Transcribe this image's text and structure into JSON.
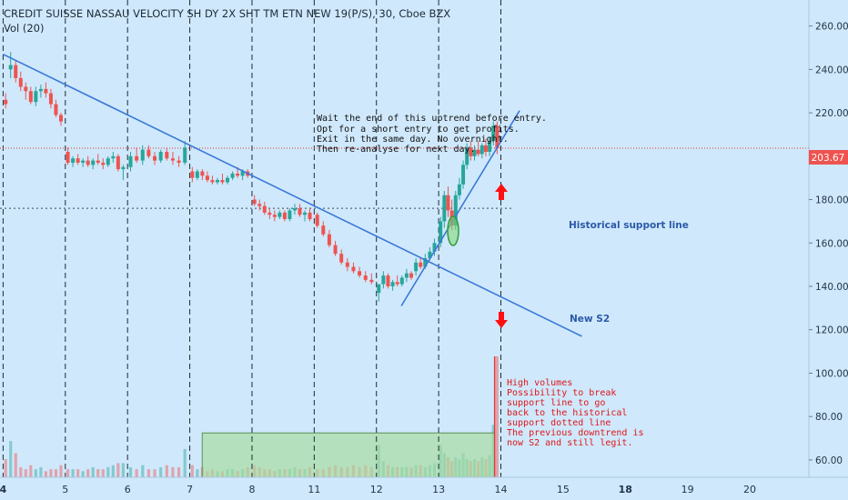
{
  "header": {
    "title": "CREDIT SUISSE NASSAU VELOCITY SH DY 2X SHT TM ETN NEW 19(P/S), 30, Cboe BZX",
    "indicator": "Vol (20)"
  },
  "colors": {
    "background": "#cfe8fb",
    "up": "#26a69a",
    "down": "#ef5350",
    "trendline": "#3a78d8",
    "arrow": "#ff1010",
    "price_line": "#e53935",
    "volume_zone": "#a8dc9b"
  },
  "annotations": {
    "strategy_note": [
      "Wait the end of this uptrend before entry.",
      "Opt for a short entry to get profits.",
      "Exit in the same day. No overnight.",
      "Then re-analyse for next day."
    ],
    "support_label": "Historical support line",
    "new_s2_label": "New S2",
    "volume_note": [
      "High volumes",
      "Possibility to break",
      "support line to go",
      "back to the historical",
      "support dotted line",
      "The previous downtrend is",
      "now S2 and still legit."
    ]
  },
  "price_tag": "203.67",
  "chart_data": {
    "type": "candlestick",
    "title": "CREDIT SUISSE NASSAU VELOCITY SH DY 2X SHT TM ETN NEW 19(P/S), 30, Cboe BZX",
    "y_axis": {
      "ticks": [
        60,
        80,
        100,
        120,
        140,
        160,
        180,
        200,
        220,
        240,
        260
      ],
      "tick_labels": [
        "60.00",
        "80.00",
        "100.00",
        "120.00",
        "140.00",
        "160.00",
        "180.00",
        "200.00",
        "220.00",
        "240.00",
        "260.00"
      ],
      "range": [
        52,
        272
      ]
    },
    "x_axis": {
      "tick_labels": [
        "4",
        "5",
        "6",
        "7",
        "8",
        "11",
        "12",
        "13",
        "14",
        "15",
        "18",
        "19",
        "20"
      ],
      "bold_ticks": [
        "4",
        "18"
      ],
      "session_index": [
        0,
        1,
        2,
        3,
        4,
        5,
        6,
        7,
        8,
        9,
        10,
        11,
        12
      ],
      "range": [
        -0.05,
        12.95
      ]
    },
    "current_price": 203.67,
    "historical_support": 176,
    "trendline_downtrend": {
      "points": [
        [
          0,
          247
        ],
        [
          9.3,
          117
        ]
      ]
    },
    "trendline_uptrend": {
      "points": [
        [
          6.4,
          131
        ],
        [
          8.3,
          221
        ]
      ]
    },
    "candles": [
      {
        "o": 226,
        "h": 229,
        "l": 222,
        "c": 224
      },
      {
        "o": 240,
        "h": 248,
        "l": 236,
        "c": 242
      },
      {
        "o": 242,
        "h": 244,
        "l": 234,
        "c": 236
      },
      {
        "o": 236,
        "h": 239,
        "l": 230,
        "c": 232
      },
      {
        "o": 232,
        "h": 234,
        "l": 226,
        "c": 230
      },
      {
        "o": 230,
        "h": 232,
        "l": 224,
        "c": 225
      },
      {
        "o": 225,
        "h": 232,
        "l": 223,
        "c": 230
      },
      {
        "o": 230,
        "h": 233,
        "l": 227,
        "c": 231
      },
      {
        "o": 231,
        "h": 234,
        "l": 227,
        "c": 229
      },
      {
        "o": 229,
        "h": 231,
        "l": 222,
        "c": 224
      },
      {
        "o": 224,
        "h": 226,
        "l": 218,
        "c": 219
      },
      {
        "o": 219,
        "h": 220,
        "l": 214,
        "c": 216
      },
      {
        "o": 202,
        "h": 204,
        "l": 196,
        "c": 197
      },
      {
        "o": 197,
        "h": 200,
        "l": 195,
        "c": 199
      },
      {
        "o": 199,
        "h": 201,
        "l": 196,
        "c": 197
      },
      {
        "o": 197,
        "h": 199,
        "l": 195,
        "c": 198
      },
      {
        "o": 198,
        "h": 200,
        "l": 195,
        "c": 196
      },
      {
        "o": 196,
        "h": 199,
        "l": 194,
        "c": 198
      },
      {
        "o": 198,
        "h": 201,
        "l": 196,
        "c": 197
      },
      {
        "o": 197,
        "h": 199,
        "l": 194,
        "c": 196
      },
      {
        "o": 196,
        "h": 200,
        "l": 195,
        "c": 199
      },
      {
        "o": 199,
        "h": 202,
        "l": 197,
        "c": 200
      },
      {
        "o": 200,
        "h": 201,
        "l": 193,
        "c": 194
      },
      {
        "o": 194,
        "h": 196,
        "l": 189,
        "c": 195
      },
      {
        "o": 195,
        "h": 202,
        "l": 193,
        "c": 200
      },
      {
        "o": 200,
        "h": 204,
        "l": 197,
        "c": 198
      },
      {
        "o": 198,
        "h": 205,
        "l": 196,
        "c": 203
      },
      {
        "o": 203,
        "h": 205,
        "l": 199,
        "c": 200
      },
      {
        "o": 200,
        "h": 202,
        "l": 196,
        "c": 198
      },
      {
        "o": 198,
        "h": 203,
        "l": 197,
        "c": 202
      },
      {
        "o": 202,
        "h": 204,
        "l": 198,
        "c": 199
      },
      {
        "o": 199,
        "h": 202,
        "l": 196,
        "c": 198
      },
      {
        "o": 198,
        "h": 200,
        "l": 195,
        "c": 197
      },
      {
        "o": 197,
        "h": 207,
        "l": 196,
        "c": 204
      },
      {
        "o": 193,
        "h": 195,
        "l": 188,
        "c": 190
      },
      {
        "o": 190,
        "h": 194,
        "l": 189,
        "c": 193
      },
      {
        "o": 193,
        "h": 194,
        "l": 189,
        "c": 191
      },
      {
        "o": 191,
        "h": 193,
        "l": 188,
        "c": 189
      },
      {
        "o": 189,
        "h": 191,
        "l": 187,
        "c": 188
      },
      {
        "o": 188,
        "h": 190,
        "l": 187,
        "c": 189
      },
      {
        "o": 189,
        "h": 192,
        "l": 187,
        "c": 188
      },
      {
        "o": 188,
        "h": 191,
        "l": 187,
        "c": 190
      },
      {
        "o": 190,
        "h": 193,
        "l": 189,
        "c": 192
      },
      {
        "o": 192,
        "h": 195,
        "l": 190,
        "c": 191
      },
      {
        "o": 191,
        "h": 194,
        "l": 189,
        "c": 193
      },
      {
        "o": 193,
        "h": 194,
        "l": 190,
        "c": 191
      },
      {
        "o": 180,
        "h": 182,
        "l": 177,
        "c": 178
      },
      {
        "o": 178,
        "h": 180,
        "l": 175,
        "c": 177
      },
      {
        "o": 177,
        "h": 179,
        "l": 173,
        "c": 174
      },
      {
        "o": 174,
        "h": 176,
        "l": 171,
        "c": 173
      },
      {
        "o": 173,
        "h": 175,
        "l": 170,
        "c": 172
      },
      {
        "o": 172,
        "h": 175,
        "l": 171,
        "c": 174
      },
      {
        "o": 174,
        "h": 175,
        "l": 170,
        "c": 171
      },
      {
        "o": 171,
        "h": 176,
        "l": 170,
        "c": 175
      },
      {
        "o": 175,
        "h": 178,
        "l": 173,
        "c": 176
      },
      {
        "o": 176,
        "h": 178,
        "l": 172,
        "c": 173
      },
      {
        "o": 173,
        "h": 175,
        "l": 170,
        "c": 174
      },
      {
        "o": 174,
        "h": 176,
        "l": 170,
        "c": 171
      },
      {
        "o": 173,
        "h": 174,
        "l": 167,
        "c": 168
      },
      {
        "o": 168,
        "h": 170,
        "l": 163,
        "c": 164
      },
      {
        "o": 164,
        "h": 166,
        "l": 158,
        "c": 159
      },
      {
        "o": 159,
        "h": 161,
        "l": 154,
        "c": 155
      },
      {
        "o": 155,
        "h": 157,
        "l": 150,
        "c": 151
      },
      {
        "o": 151,
        "h": 153,
        "l": 147,
        "c": 149
      },
      {
        "o": 149,
        "h": 151,
        "l": 146,
        "c": 147
      },
      {
        "o": 147,
        "h": 149,
        "l": 144,
        "c": 145
      },
      {
        "o": 145,
        "h": 147,
        "l": 142,
        "c": 143
      },
      {
        "o": 143,
        "h": 146,
        "l": 141,
        "c": 142
      },
      {
        "o": 137,
        "h": 141,
        "l": 133,
        "c": 141
      },
      {
        "o": 141,
        "h": 147,
        "l": 139,
        "c": 145
      },
      {
        "o": 145,
        "h": 146,
        "l": 139,
        "c": 140
      },
      {
        "o": 140,
        "h": 143,
        "l": 138,
        "c": 142
      },
      {
        "o": 142,
        "h": 145,
        "l": 140,
        "c": 141
      },
      {
        "o": 141,
        "h": 145,
        "l": 140,
        "c": 144
      },
      {
        "o": 144,
        "h": 148,
        "l": 142,
        "c": 146
      },
      {
        "o": 146,
        "h": 147,
        "l": 143,
        "c": 144
      },
      {
        "o": 147,
        "h": 153,
        "l": 145,
        "c": 151
      },
      {
        "o": 151,
        "h": 153,
        "l": 148,
        "c": 149
      },
      {
        "o": 149,
        "h": 155,
        "l": 148,
        "c": 153
      },
      {
        "o": 153,
        "h": 158,
        "l": 152,
        "c": 156
      },
      {
        "o": 156,
        "h": 162,
        "l": 154,
        "c": 160
      },
      {
        "o": 160,
        "h": 172,
        "l": 158,
        "c": 170
      },
      {
        "o": 170,
        "h": 184,
        "l": 167,
        "c": 182
      },
      {
        "o": 182,
        "h": 186,
        "l": 172,
        "c": 175
      },
      {
        "o": 175,
        "h": 180,
        "l": 166,
        "c": 168
      },
      {
        "o": 168,
        "h": 184,
        "l": 166,
        "c": 182
      },
      {
        "o": 182,
        "h": 190,
        "l": 180,
        "c": 187
      },
      {
        "o": 187,
        "h": 198,
        "l": 185,
        "c": 196
      },
      {
        "o": 196,
        "h": 206,
        "l": 194,
        "c": 204
      },
      {
        "o": 204,
        "h": 207,
        "l": 198,
        "c": 200
      },
      {
        "o": 200,
        "h": 205,
        "l": 198,
        "c": 203
      },
      {
        "o": 203,
        "h": 207,
        "l": 200,
        "c": 201
      },
      {
        "o": 201,
        "h": 206,
        "l": 199,
        "c": 205
      },
      {
        "o": 205,
        "h": 208,
        "l": 200,
        "c": 202
      },
      {
        "o": 202,
        "h": 209,
        "l": 200,
        "c": 207
      },
      {
        "o": 207,
        "h": 216,
        "l": 205,
        "c": 214
      },
      {
        "o": 214,
        "h": 216,
        "l": 201,
        "c": 203.67
      }
    ],
    "volume_range": [
      0,
      60
    ],
    "volumes": [
      9,
      18,
      12,
      5,
      4,
      6,
      4,
      5,
      3,
      4,
      4,
      6,
      4,
      4,
      4,
      3,
      4,
      5,
      4,
      4,
      5,
      6,
      7,
      7,
      5,
      4,
      6,
      4,
      4,
      5,
      6,
      5,
      5,
      14,
      6,
      4,
      5,
      3,
      4,
      3,
      3,
      4,
      4,
      3,
      4,
      5,
      6,
      5,
      4,
      4,
      3,
      4,
      4,
      4,
      5,
      4,
      4,
      5,
      4,
      4,
      5,
      6,
      5,
      5,
      6,
      5,
      6,
      5,
      16,
      8,
      6,
      5,
      5,
      5,
      5,
      5,
      6,
      6,
      5,
      6,
      7,
      16,
      12,
      10,
      8,
      10,
      9,
      12,
      9,
      8,
      9,
      8,
      10,
      9,
      11,
      26,
      60
    ],
    "volume_zone": {
      "from_session": 3.2,
      "to_session": 7.9,
      "level": 22
    }
  }
}
